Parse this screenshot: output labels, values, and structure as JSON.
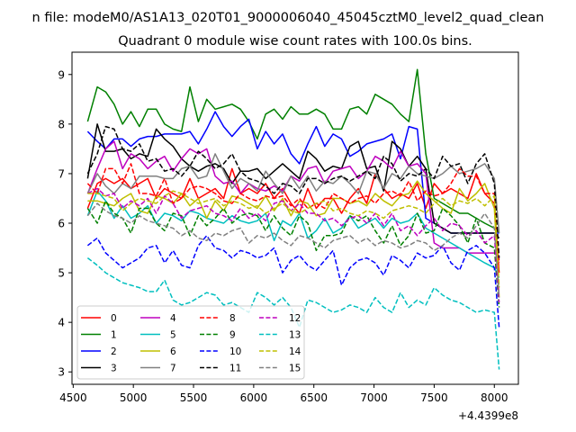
{
  "chart_data": {
    "type": "line",
    "suptitle": "n file: modeM0/AS1A13_020T01_9000006040_45045cztM0_level2_quad_clean",
    "title": "Quadrant 0 module wise count rates with 100.0s bins.",
    "xlabel": "",
    "ylabel": "",
    "x_offset_label": "+4.4399e8",
    "xlim": [
      4490,
      8200
    ],
    "ylim": [
      2.75,
      9.45
    ],
    "xticks": [
      4500,
      5000,
      5500,
      6000,
      6500,
      7000,
      7500,
      8000
    ],
    "xtick_labels": [
      "4500",
      "5000",
      "5500",
      "6000",
      "6500",
      "7000",
      "7500",
      "8000"
    ],
    "yticks": [
      3,
      4,
      5,
      6,
      7,
      8,
      9
    ],
    "ytick_labels": [
      "3",
      "4",
      "5",
      "6",
      "7",
      "8",
      "9"
    ],
    "grid": false,
    "legend": {
      "placement": "lower-left",
      "columns": 4
    },
    "x": [
      4620,
      4700,
      4770,
      4840,
      4910,
      4980,
      5050,
      5120,
      5190,
      5260,
      5330,
      5400,
      5470,
      5540,
      5610,
      5680,
      5750,
      5820,
      5890,
      5960,
      6030,
      6100,
      6170,
      6240,
      6310,
      6380,
      6450,
      6520,
      6590,
      6660,
      6730,
      6800,
      6870,
      6940,
      7010,
      7080,
      7150,
      7220,
      7290,
      7360,
      7430,
      7500,
      7570,
      7640,
      7710,
      7780,
      7850,
      7920,
      8000,
      8040
    ],
    "series": [
      {
        "name": "0",
        "color": "#ff0000",
        "dash": "solid",
        "values": [
          6.3,
          6.8,
          6.9,
          6.8,
          6.9,
          6.7,
          6.8,
          6.9,
          6.5,
          6.7,
          6.6,
          6.5,
          6.9,
          6.5,
          6.6,
          6.7,
          6.5,
          7.1,
          6.6,
          6.7,
          6.6,
          6.8,
          6.5,
          6.7,
          6.4,
          6.2,
          6.7,
          6.3,
          6.5,
          6.5,
          6.2,
          6.5,
          6.7,
          6.4,
          7.0,
          6.7,
          6.5,
          6.6,
          6.5,
          6.8,
          6.3,
          6.8,
          6.6,
          6.7,
          6.6,
          6.5,
          7.0,
          6.6,
          6.4,
          5.0
        ]
      },
      {
        "name": "1",
        "color": "#008000",
        "dash": "solid",
        "values": [
          8.05,
          8.75,
          8.65,
          8.4,
          8.0,
          8.25,
          7.95,
          8.3,
          8.3,
          8.0,
          7.9,
          7.85,
          8.75,
          8.05,
          8.5,
          8.3,
          8.35,
          8.4,
          8.3,
          8.05,
          7.7,
          8.2,
          8.3,
          8.1,
          8.35,
          8.2,
          8.2,
          8.3,
          8.2,
          7.9,
          7.9,
          8.3,
          8.35,
          8.2,
          8.6,
          8.5,
          8.4,
          8.2,
          8.05,
          9.1,
          7.4,
          6.5,
          6.4,
          6.3,
          6.2,
          6.2,
          6.1,
          6.0,
          5.9,
          5.8
        ]
      },
      {
        "name": "2",
        "color": "#0000ff",
        "dash": "solid",
        "values": [
          7.85,
          7.65,
          7.5,
          7.7,
          7.7,
          7.55,
          7.7,
          7.75,
          7.75,
          7.8,
          7.8,
          7.8,
          7.85,
          7.6,
          7.9,
          8.25,
          7.95,
          7.75,
          7.95,
          8.1,
          7.5,
          7.85,
          7.6,
          7.8,
          7.4,
          7.2,
          7.6,
          7.95,
          7.55,
          7.8,
          7.7,
          7.35,
          7.45,
          7.6,
          7.65,
          7.7,
          7.8,
          7.3,
          7.95,
          7.9,
          6.1,
          6.0,
          5.9,
          5.8,
          5.8,
          5.8,
          5.8,
          5.8,
          5.8,
          5.8
        ]
      },
      {
        "name": "3",
        "color": "#000000",
        "dash": "solid",
        "values": [
          6.9,
          8.0,
          7.45,
          7.45,
          7.5,
          7.3,
          7.4,
          7.35,
          7.9,
          7.7,
          7.55,
          7.3,
          7.15,
          7.05,
          7.15,
          7.2,
          7.1,
          6.8,
          7.05,
          7.05,
          7.1,
          6.9,
          7.05,
          7.2,
          7.05,
          6.9,
          7.45,
          7.3,
          7.05,
          7.15,
          7.1,
          7.55,
          7.65,
          7.1,
          7.15,
          6.65,
          7.65,
          7.5,
          7.15,
          7.35,
          7.1,
          6.0,
          5.9,
          5.8,
          5.8,
          5.8,
          5.8,
          5.8,
          5.8,
          5.7
        ]
      },
      {
        "name": "4",
        "color": "#bf00bf",
        "dash": "solid",
        "values": [
          6.6,
          7.1,
          7.5,
          7.65,
          7.1,
          7.4,
          7.3,
          7.1,
          7.25,
          7.35,
          7.05,
          7.3,
          7.5,
          7.4,
          7.5,
          6.95,
          6.8,
          6.85,
          6.6,
          6.8,
          6.7,
          6.65,
          6.75,
          6.65,
          6.95,
          6.85,
          7.1,
          7.15,
          6.8,
          7.05,
          7.1,
          7.15,
          6.9,
          7.05,
          7.35,
          7.25,
          7.1,
          7.45,
          7.15,
          7.2,
          7.0,
          5.6,
          5.5,
          5.5,
          5.5,
          5.4,
          5.4,
          5.4,
          5.4,
          5.3
        ]
      },
      {
        "name": "5",
        "color": "#00bfbf",
        "dash": "solid",
        "values": [
          6.15,
          6.65,
          6.45,
          6.1,
          6.35,
          6.1,
          6.2,
          6.35,
          6.0,
          6.2,
          6.15,
          6.05,
          6.25,
          6.2,
          6.1,
          6.05,
          6.0,
          6.15,
          6.05,
          6.0,
          6.05,
          6.2,
          5.65,
          6.05,
          5.95,
          6.2,
          5.7,
          5.85,
          6.1,
          5.8,
          5.9,
          6.15,
          5.9,
          6.0,
          6.1,
          5.9,
          6.1,
          6.0,
          6.05,
          6.2,
          5.9,
          5.8,
          5.7,
          5.6,
          5.5,
          5.4,
          5.3,
          5.2,
          5.1,
          4.9
        ]
      },
      {
        "name": "6",
        "color": "#bfbf00",
        "dash": "solid",
        "values": [
          6.45,
          6.45,
          6.4,
          6.35,
          6.5,
          6.6,
          6.25,
          6.2,
          6.55,
          6.5,
          6.4,
          6.6,
          6.35,
          6.5,
          6.1,
          6.45,
          6.25,
          6.55,
          6.5,
          6.4,
          6.3,
          6.55,
          6.25,
          6.5,
          6.15,
          6.45,
          6.4,
          6.15,
          6.2,
          6.5,
          6.5,
          6.4,
          6.45,
          6.35,
          6.6,
          6.45,
          6.35,
          6.55,
          6.6,
          6.85,
          6.6,
          6.45,
          6.3,
          6.2,
          6.7,
          6.45,
          6.6,
          6.8,
          6.3,
          4.5
        ]
      },
      {
        "name": "7",
        "color": "#808080",
        "dash": "solid",
        "values": [
          6.6,
          7.0,
          6.75,
          6.6,
          6.8,
          6.7,
          6.95,
          6.95,
          6.95,
          6.9,
          6.9,
          7.1,
          7.15,
          6.9,
          6.95,
          7.4,
          7.05,
          6.7,
          6.9,
          6.8,
          6.65,
          7.05,
          6.8,
          6.6,
          6.95,
          6.7,
          6.95,
          6.65,
          6.85,
          6.8,
          6.95,
          6.8,
          6.6,
          7.05,
          7.0,
          6.7,
          7.0,
          6.9,
          7.15,
          7.0,
          6.95,
          6.9,
          7.0,
          7.15,
          7.0,
          7.05,
          7.1,
          7.2,
          6.9,
          5.8
        ]
      },
      {
        "name": "8",
        "color": "#ff0000",
        "dash": "dashed",
        "values": [
          6.8,
          6.6,
          7.1,
          7.1,
          6.8,
          7.2,
          6.6,
          6.6,
          6.55,
          6.9,
          6.4,
          6.5,
          6.7,
          6.75,
          6.7,
          6.6,
          6.45,
          6.4,
          6.6,
          6.5,
          6.45,
          6.55,
          6.5,
          6.55,
          6.35,
          6.5,
          6.3,
          6.4,
          6.3,
          6.6,
          6.5,
          6.4,
          6.5,
          6.55,
          6.4,
          6.6,
          6.65,
          6.55,
          6.85,
          6.45,
          6.65,
          6.55,
          6.6,
          6.8,
          7.1,
          6.95,
          6.95,
          6.6,
          6.6,
          5.2
        ]
      },
      {
        "name": "9",
        "color": "#008000",
        "dash": "dashed",
        "values": [
          6.3,
          6.0,
          6.45,
          6.2,
          6.1,
          5.8,
          6.3,
          6.3,
          6.0,
          5.85,
          6.2,
          6.15,
          5.75,
          6.15,
          5.95,
          6.1,
          6.3,
          6.0,
          6.15,
          6.2,
          6.15,
          5.85,
          6.15,
          5.9,
          5.75,
          6.15,
          6.0,
          5.45,
          5.75,
          5.75,
          5.8,
          6.15,
          6.05,
          6.15,
          5.85,
          5.6,
          5.95,
          5.55,
          5.75,
          6.2,
          5.8,
          5.85,
          6.3,
          6.15,
          5.95,
          5.6,
          6.1,
          5.6,
          5.5,
          4.3
        ]
      },
      {
        "name": "10",
        "color": "#0000ff",
        "dash": "dashed",
        "values": [
          5.55,
          5.7,
          5.4,
          5.25,
          5.1,
          5.2,
          5.3,
          5.5,
          5.55,
          5.2,
          5.45,
          5.15,
          5.1,
          5.55,
          5.75,
          5.5,
          5.45,
          5.3,
          5.45,
          5.4,
          5.3,
          5.35,
          5.5,
          5.0,
          5.25,
          5.35,
          5.15,
          5.05,
          5.25,
          5.45,
          4.75,
          5.1,
          5.25,
          5.3,
          5.2,
          4.95,
          5.35,
          5.25,
          5.1,
          5.4,
          5.3,
          5.35,
          5.55,
          5.2,
          5.05,
          5.45,
          5.55,
          5.4,
          5.1,
          3.9
        ]
      },
      {
        "name": "11",
        "color": "#000000",
        "dash": "dashed",
        "values": [
          7.0,
          7.4,
          7.95,
          7.9,
          7.5,
          7.45,
          7.6,
          7.25,
          7.3,
          7.05,
          7.1,
          6.95,
          7.15,
          7.45,
          7.3,
          7.1,
          7.2,
          7.4,
          7.05,
          6.9,
          6.85,
          6.75,
          6.6,
          6.8,
          6.75,
          6.6,
          6.9,
          6.9,
          6.8,
          6.9,
          6.95,
          6.85,
          6.95,
          7.05,
          6.9,
          7.35,
          7.2,
          6.85,
          7.0,
          6.95,
          7.1,
          6.9,
          7.35,
          7.15,
          7.2,
          6.8,
          7.2,
          7.4,
          6.8,
          5.3
        ]
      },
      {
        "name": "12",
        "color": "#bf00bf",
        "dash": "dashed",
        "values": [
          6.6,
          6.7,
          6.55,
          6.6,
          6.3,
          6.45,
          6.35,
          6.5,
          6.2,
          6.55,
          6.4,
          6.1,
          6.25,
          6.3,
          6.35,
          6.2,
          6.15,
          6.05,
          6.3,
          6.1,
          6.2,
          6.05,
          6.4,
          6.45,
          6.25,
          6.4,
          6.2,
          6.2,
          6.05,
          6.1,
          5.95,
          6.1,
          6.15,
          6.0,
          6.2,
          5.95,
          6.2,
          5.85,
          5.95,
          5.75,
          5.95,
          6.1,
          5.85,
          6.0,
          5.95,
          5.75,
          5.85,
          5.6,
          5.75,
          4.4
        ]
      },
      {
        "name": "13",
        "color": "#00bfbf",
        "dash": "dashed",
        "values": [
          5.3,
          5.15,
          5.0,
          4.9,
          4.8,
          4.75,
          4.7,
          4.62,
          4.62,
          4.85,
          4.45,
          4.35,
          4.4,
          4.5,
          4.6,
          4.55,
          4.35,
          4.4,
          4.3,
          4.2,
          4.6,
          4.5,
          4.35,
          4.5,
          4.3,
          3.9,
          4.45,
          4.4,
          4.3,
          4.2,
          4.25,
          4.35,
          4.3,
          4.2,
          4.5,
          4.3,
          4.2,
          4.6,
          4.3,
          4.45,
          4.35,
          4.7,
          4.55,
          4.45,
          4.4,
          4.3,
          4.2,
          4.25,
          4.2,
          3.05
        ]
      },
      {
        "name": "14",
        "color": "#bfbf00",
        "dash": "dashed",
        "values": [
          6.6,
          6.6,
          6.55,
          6.5,
          6.25,
          6.4,
          6.5,
          6.45,
          6.4,
          6.55,
          6.65,
          6.6,
          6.5,
          6.4,
          6.45,
          6.5,
          6.35,
          6.45,
          6.4,
          6.3,
          6.35,
          6.2,
          6.3,
          6.4,
          6.25,
          6.2,
          6.3,
          6.4,
          6.45,
          6.25,
          6.3,
          6.2,
          6.15,
          6.25,
          6.2,
          6.1,
          6.25,
          6.3,
          6.35,
          6.3,
          6.2,
          6.4,
          6.5,
          6.35,
          6.45,
          6.4,
          6.5,
          6.35,
          6.55,
          4.7
        ]
      },
      {
        "name": "15",
        "color": "#808080",
        "dash": "dashed",
        "values": [
          6.15,
          6.4,
          6.25,
          6.15,
          6.1,
          6.0,
          6.15,
          6.05,
          6.0,
          5.95,
          5.9,
          5.75,
          5.85,
          5.7,
          5.65,
          5.8,
          5.75,
          5.85,
          5.9,
          5.6,
          5.75,
          5.7,
          5.8,
          5.65,
          5.55,
          5.75,
          5.7,
          5.6,
          5.5,
          5.65,
          5.7,
          5.75,
          5.6,
          5.7,
          5.55,
          5.65,
          5.6,
          5.5,
          5.55,
          5.65,
          5.6,
          5.45,
          5.55,
          5.7,
          5.8,
          5.7,
          5.95,
          6.2,
          5.9,
          4.5
        ]
      }
    ]
  }
}
